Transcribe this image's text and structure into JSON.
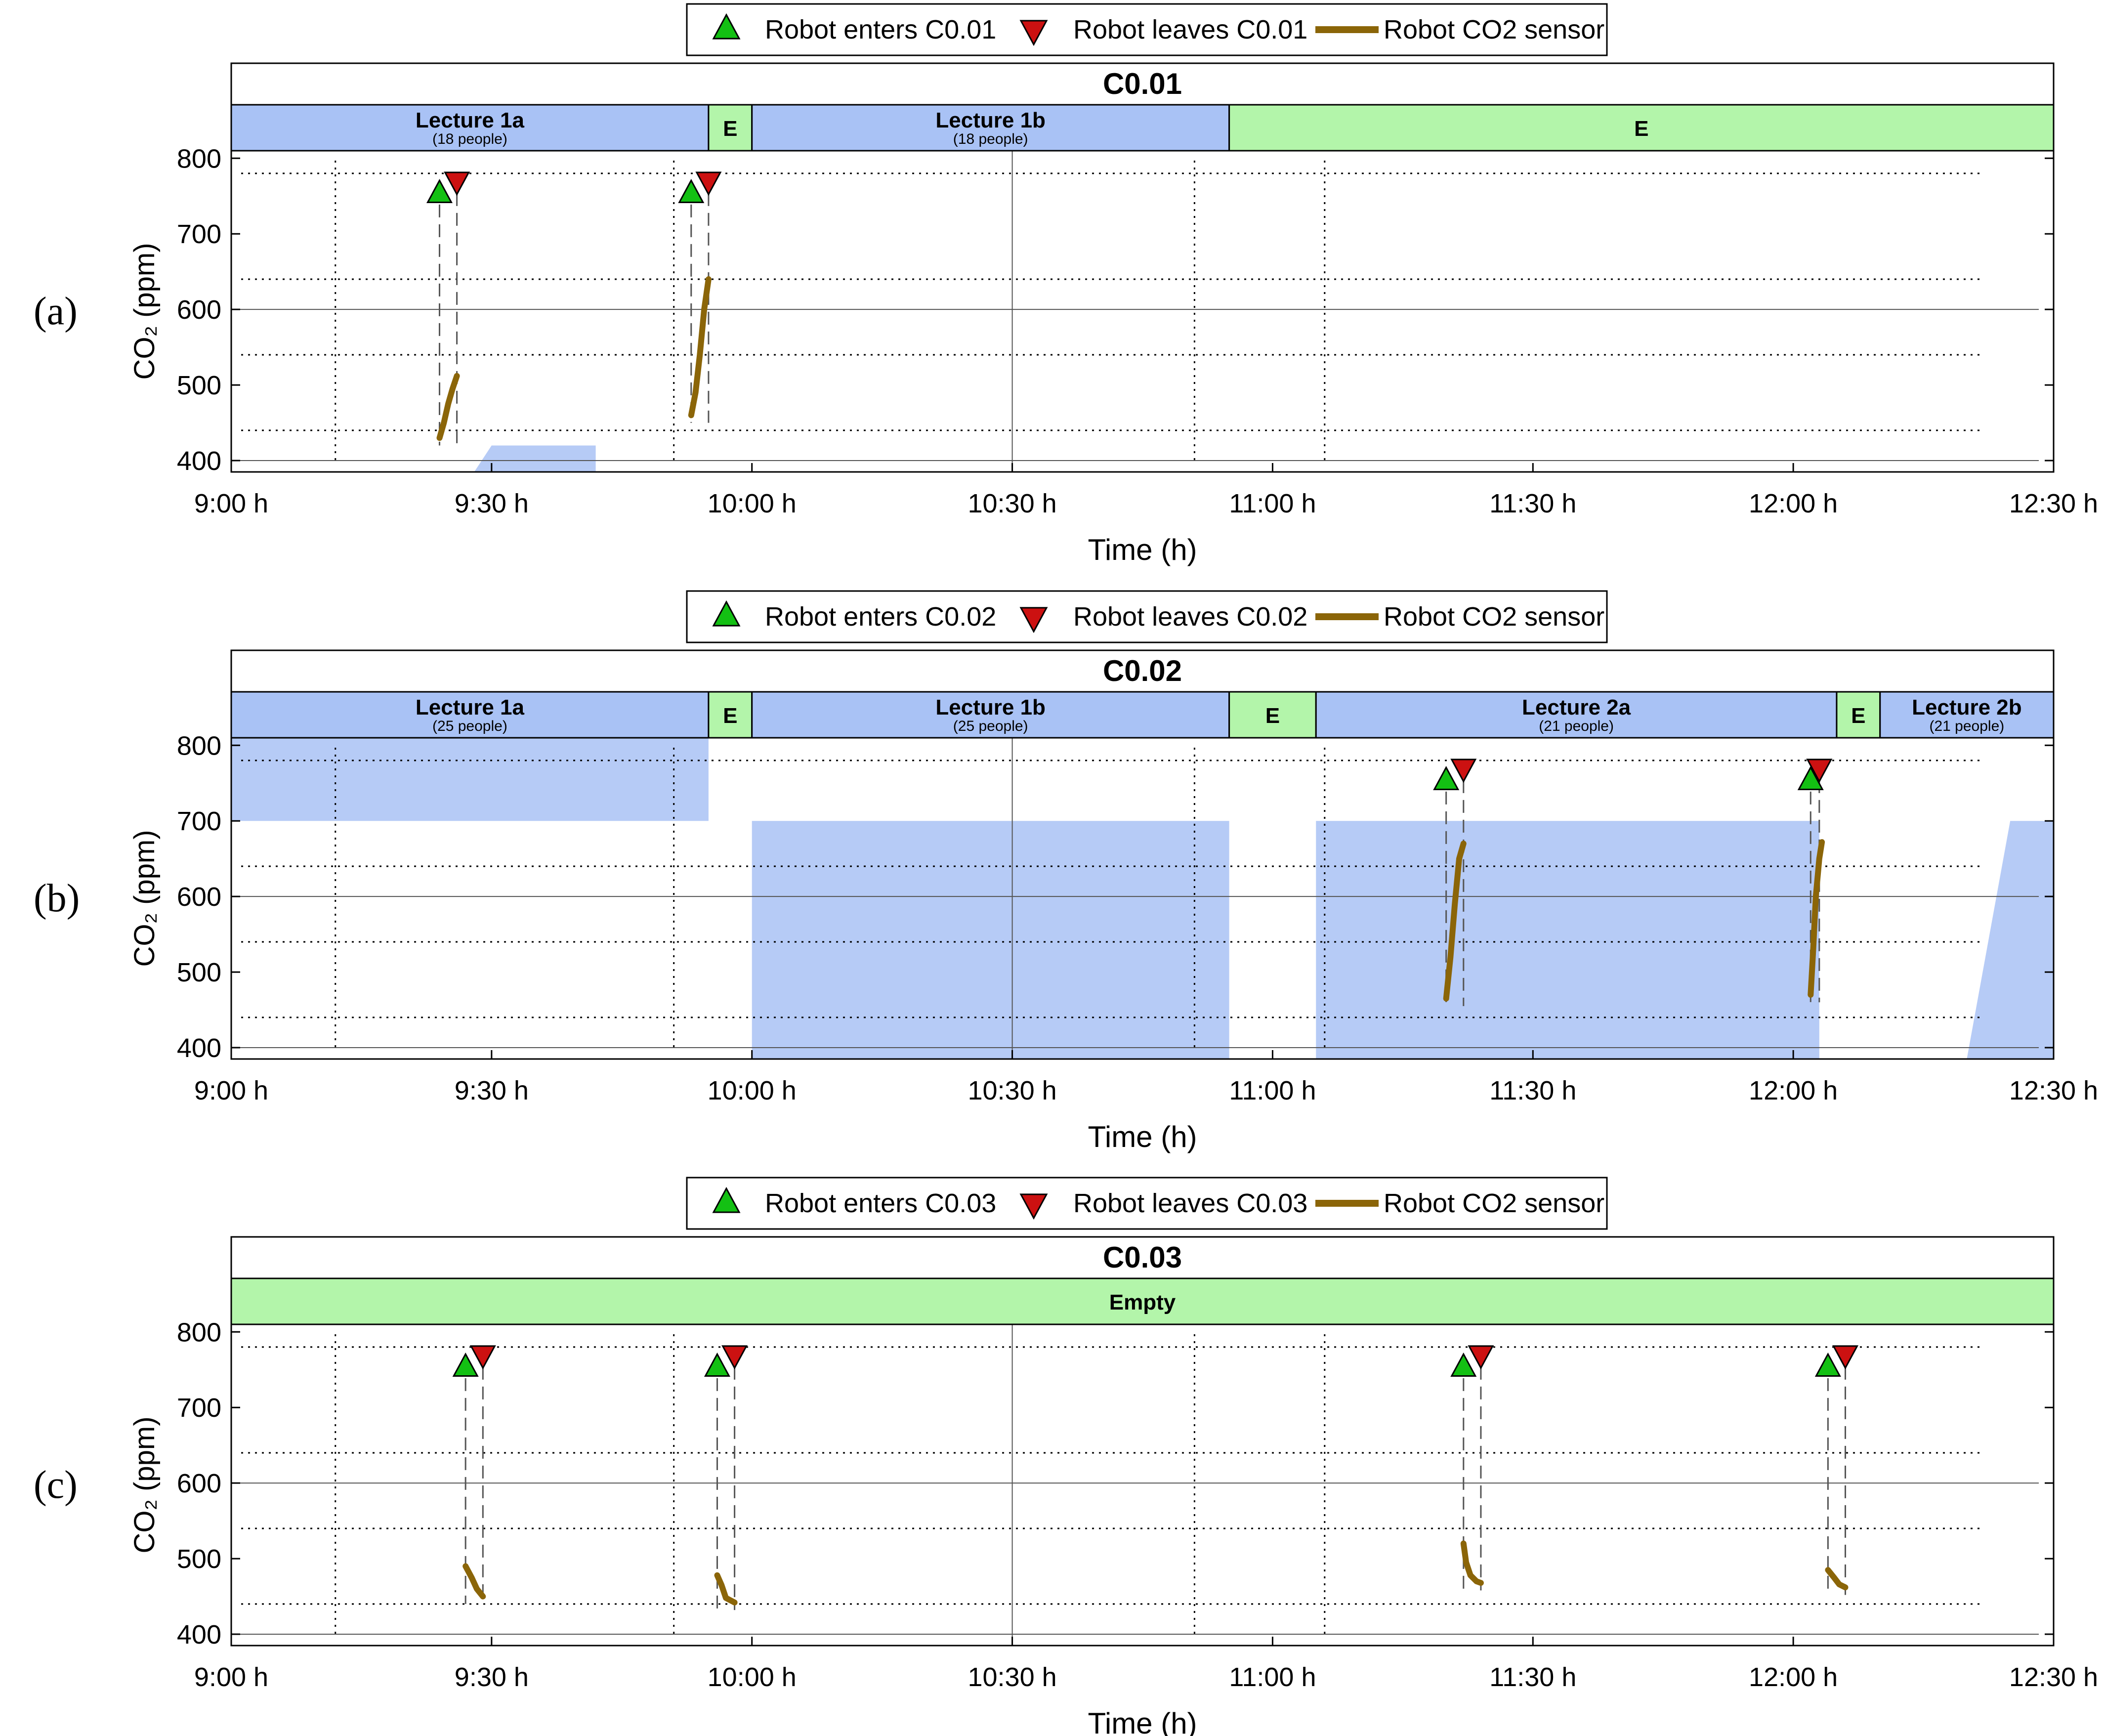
{
  "colors": {
    "lecture": "#a9c2f5",
    "empty": "#b3f5aa",
    "enter_marker": "#13c013",
    "leave_marker": "#cc1111",
    "sensor": "#8b6508",
    "lecture_fill": "#a9c2f5"
  },
  "chart_data": [
    {
      "type": "line",
      "panel_label": "(a)",
      "title": "C0.01",
      "xlabel": "Time (h)",
      "ylabel": "CO₂ (ppm)",
      "x_ticks": [
        "9:00 h",
        "9:30 h",
        "10:00 h",
        "10:30 h",
        "11:00 h",
        "11:30 h",
        "12:00 h",
        "12:30 h"
      ],
      "y_ticks": [
        400,
        500,
        600,
        700,
        800
      ],
      "xlim": [
        "9:00",
        "12:30"
      ],
      "ylim": [
        385,
        810
      ],
      "legend": [
        {
          "marker": "enter",
          "label": "Robot enters C0.01"
        },
        {
          "marker": "leave",
          "label": "Robot leaves C0.01"
        },
        {
          "marker": "line",
          "label": "Robot CO2 sensor"
        }
      ],
      "legend_position": "top-center",
      "schedule": [
        {
          "start": "9:00",
          "end": "9:55",
          "kind": "lecture",
          "name": "Lecture 1a",
          "people": "(18 people)"
        },
        {
          "start": "9:55",
          "end": "10:00",
          "kind": "empty",
          "name": "E",
          "people": ""
        },
        {
          "start": "10:00",
          "end": "10:55",
          "kind": "lecture",
          "name": "Lecture 1b",
          "people": "(18 people)"
        },
        {
          "start": "10:55",
          "end": "12:30",
          "kind": "empty",
          "name": "E",
          "people": ""
        }
      ],
      "robot_visits": [
        {
          "enter": "9:24",
          "leave": "9:26",
          "sensor": [
            [
              "9:24",
              430
            ],
            [
              "9:24.5",
              450
            ],
            [
              "9:25",
              475
            ],
            [
              "9:25.5",
              495
            ],
            [
              "9:26",
              512
            ]
          ]
        },
        {
          "enter": "9:53",
          "leave": "9:55",
          "sensor": [
            [
              "9:53",
              460
            ],
            [
              "9:53.5",
              490
            ],
            [
              "9:54",
              540
            ],
            [
              "9:54.5",
              600
            ],
            [
              "9:55",
              640
            ]
          ]
        }
      ],
      "fill_regions": [
        {
          "x": [
            "9:28",
            "9:30",
            "9:42"
          ],
          "y": [
            385,
            420,
            420
          ]
        }
      ]
    },
    {
      "type": "line",
      "panel_label": "(b)",
      "title": "C0.02",
      "xlabel": "Time (h)",
      "ylabel": "CO₂ (ppm)",
      "x_ticks": [
        "9:00 h",
        "9:30 h",
        "10:00 h",
        "10:30 h",
        "11:00 h",
        "11:30 h",
        "12:00 h",
        "12:30 h"
      ],
      "y_ticks": [
        400,
        500,
        600,
        700,
        800
      ],
      "xlim": [
        "9:00",
        "12:30"
      ],
      "ylim": [
        385,
        810
      ],
      "legend": [
        {
          "marker": "enter",
          "label": "Robot enters C0.02"
        },
        {
          "marker": "leave",
          "label": "Robot leaves C0.02"
        },
        {
          "marker": "line",
          "label": "Robot CO2 sensor"
        }
      ],
      "legend_position": "top-center",
      "schedule": [
        {
          "start": "9:00",
          "end": "9:55",
          "kind": "lecture",
          "name": "Lecture 1a",
          "people": "(25 people)"
        },
        {
          "start": "9:55",
          "end": "10:00",
          "kind": "empty",
          "name": "E",
          "people": ""
        },
        {
          "start": "10:00",
          "end": "10:55",
          "kind": "lecture",
          "name": "Lecture 1b",
          "people": "(25 people)"
        },
        {
          "start": "10:55",
          "end": "11:05",
          "kind": "empty",
          "name": "E",
          "people": ""
        },
        {
          "start": "11:05",
          "end": "12:05",
          "kind": "lecture",
          "name": "Lecture 2a",
          "people": "(21 people)"
        },
        {
          "start": "12:05",
          "end": "12:10",
          "kind": "empty",
          "name": "E",
          "people": ""
        },
        {
          "start": "12:10",
          "end": "12:30",
          "kind": "lecture",
          "name": "Lecture 2b",
          "people": "(21 people)"
        }
      ],
      "robot_visits": [
        {
          "enter": "11:20",
          "leave": "11:22",
          "sensor": [
            [
              "11:20",
              465
            ],
            [
              "11:20.5",
              520
            ],
            [
              "11:21",
              590
            ],
            [
              "11:21.5",
              650
            ],
            [
              "11:22",
              670
            ]
          ]
        },
        {
          "enter": "12:02",
          "leave": "12:03",
          "sensor": [
            [
              "12:02",
              470
            ],
            [
              "12:02.3",
              530
            ],
            [
              "12:02.6",
              600
            ],
            [
              "12:03",
              650
            ],
            [
              "12:03.3",
              672
            ]
          ]
        }
      ],
      "fill_regions": [
        {
          "x": [
            "9:00",
            "9:55"
          ],
          "y": [
            700,
            810
          ]
        },
        {
          "x": [
            "10:00",
            "10:55"
          ],
          "y": [
            385,
            700
          ]
        },
        {
          "x": [
            "11:05",
            "12:03"
          ],
          "y": [
            385,
            700
          ]
        },
        {
          "x": [
            "12:20",
            "12:25",
            "12:30"
          ],
          "y": [
            385,
            700,
            700
          ]
        }
      ]
    },
    {
      "type": "line",
      "panel_label": "(c)",
      "title": "C0.03",
      "xlabel": "Time (h)",
      "ylabel": "CO₂ (ppm)",
      "x_ticks": [
        "9:00 h",
        "9:30 h",
        "10:00 h",
        "10:30 h",
        "11:00 h",
        "11:30 h",
        "12:00 h",
        "12:30 h"
      ],
      "y_ticks": [
        400,
        500,
        600,
        700,
        800
      ],
      "xlim": [
        "9:00",
        "12:30"
      ],
      "ylim": [
        385,
        810
      ],
      "legend": [
        {
          "marker": "enter",
          "label": "Robot enters C0.03"
        },
        {
          "marker": "leave",
          "label": "Robot leaves C0.03"
        },
        {
          "marker": "line",
          "label": "Robot CO2 sensor"
        }
      ],
      "legend_position": "top-center",
      "schedule": [
        {
          "start": "9:00",
          "end": "12:30",
          "kind": "empty",
          "name": "Empty",
          "people": ""
        }
      ],
      "robot_visits": [
        {
          "enter": "9:27",
          "leave": "9:29",
          "sensor": [
            [
              "9:27",
              490
            ],
            [
              "9:27.7",
              475
            ],
            [
              "9:28.3",
              460
            ],
            [
              "9:29",
              450
            ]
          ]
        },
        {
          "enter": "9:56",
          "leave": "9:58",
          "sensor": [
            [
              "9:56",
              478
            ],
            [
              "9:56.5",
              465
            ],
            [
              "9:57",
              448
            ],
            [
              "9:58",
              442
            ]
          ]
        },
        {
          "enter": "11:22",
          "leave": "11:24",
          "sensor": [
            [
              "11:22",
              520
            ],
            [
              "11:22.3",
              495
            ],
            [
              "11:22.8",
              478
            ],
            [
              "11:23.5",
              470
            ],
            [
              "11:24",
              468
            ]
          ]
        },
        {
          "enter": "12:04",
          "leave": "12:06",
          "sensor": [
            [
              "12:04",
              485
            ],
            [
              "12:04.7",
              475
            ],
            [
              "12:05.3",
              466
            ],
            [
              "12:06",
              462
            ]
          ]
        }
      ],
      "fill_regions": []
    }
  ]
}
